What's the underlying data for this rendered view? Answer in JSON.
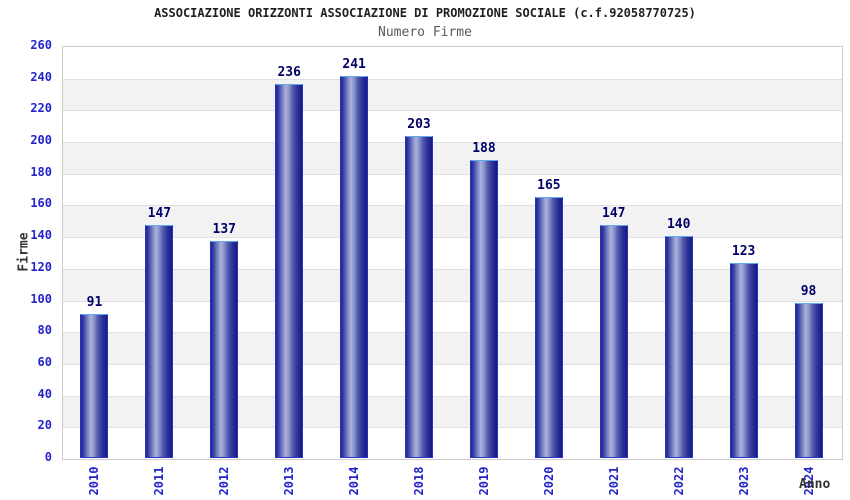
{
  "header": {
    "title": "ASSOCIAZIONE ORIZZONTI ASSOCIAZIONE DI PROMOZIONE SOCIALE (c.f.92058770725)",
    "subtitle": "Numero Firme"
  },
  "chart_data": {
    "type": "bar",
    "title": "ASSOCIAZIONE ORIZZONTI ASSOCIAZIONE DI PROMOZIONE SOCIALE (c.f.92058770725)",
    "subtitle": "Numero Firme",
    "xlabel": "Anno",
    "ylabel": "Firme",
    "categories": [
      "2010",
      "2011",
      "2012",
      "2013",
      "2014",
      "2018",
      "2019",
      "2020",
      "2021",
      "2022",
      "2023",
      "2024"
    ],
    "values": [
      91,
      147,
      137,
      236,
      241,
      203,
      188,
      165,
      147,
      140,
      123,
      98
    ],
    "ylim": [
      0,
      260
    ],
    "ytick_step": 20,
    "grid": "horizontal-bands-alternating",
    "legend": "none",
    "bar_labels_shown": true,
    "colors": {
      "bar_dark": "#23238e",
      "bar_light": "#aab2da",
      "bar_border_top": "#62a8f0",
      "bar_border_side": "#2633c4",
      "tick_label": "#2323cc",
      "value_label": "#000066",
      "axis_title": "#333333",
      "band_gray": "#f2f2f2",
      "grid_line": "#e0e0e0",
      "plot_border": "#cccccc",
      "title_color": "#1f1f1f",
      "subtitle_color": "#5a5a5a"
    }
  }
}
